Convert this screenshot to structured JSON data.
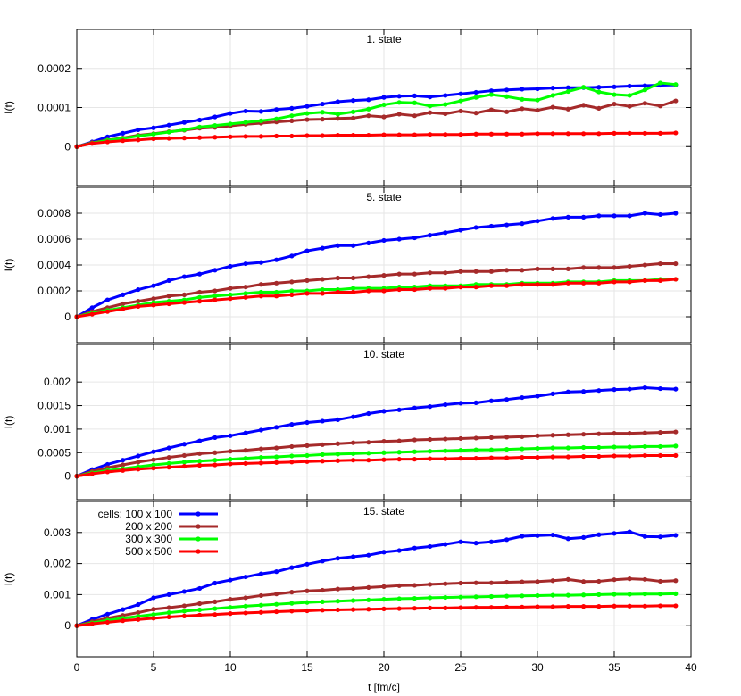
{
  "chart_data": {
    "type": "line",
    "x": [
      0,
      1,
      2,
      3,
      4,
      5,
      6,
      7,
      8,
      9,
      10,
      11,
      12,
      13,
      14,
      15,
      16,
      17,
      18,
      19,
      20,
      21,
      22,
      23,
      24,
      25,
      26,
      27,
      28,
      29,
      30,
      31,
      32,
      33,
      34,
      35,
      36,
      37,
      38,
      39
    ],
    "x_ticks": [
      0,
      5,
      10,
      15,
      20,
      25,
      30,
      35,
      40
    ],
    "xlim": [
      0,
      40
    ],
    "xlabel": "t [fm/c]",
    "grid": true,
    "legend": {
      "title": "cells:",
      "placement": "top-left of last panel",
      "entries": [
        {
          "label": "100 x 100",
          "color": "#0000ff"
        },
        {
          "label": "200 x 200",
          "color": "#a52a2a"
        },
        {
          "label": "300 x 300",
          "color": "#00ff00"
        },
        {
          "label": "500 x 500",
          "color": "#ff0000"
        }
      ]
    },
    "panels": [
      {
        "title": "1. state",
        "ylabel": "I(t)",
        "ylim": [
          -0.0001,
          0.0003
        ],
        "y_ticks": [
          0,
          0.0001,
          0.0002
        ],
        "y_tick_labels": [
          "0",
          "0.0001",
          "0.0002"
        ],
        "series": [
          {
            "name": "100 x 100",
            "color": "#0000ff",
            "values": [
              0,
              1.2e-05,
              2.5e-05,
              3.4e-05,
              4.3e-05,
              4.8e-05,
              5.5e-05,
              6.2e-05,
              6.8e-05,
              7.6e-05,
              8.5e-05,
              9.1e-05,
              9e-05,
              9.5e-05,
              9.8e-05,
              0.000103,
              0.000109,
              0.000115,
              0.000118,
              0.00012,
              0.000126,
              0.000129,
              0.00013,
              0.000127,
              0.000131,
              0.000135,
              0.000139,
              0.000143,
              0.000145,
              0.000147,
              0.000148,
              0.00015,
              0.000151,
              0.000151,
              0.000152,
              0.000153,
              0.000155,
              0.000156,
              0.000157,
              0.000158
            ]
          },
          {
            "name": "200 x 200",
            "color": "#a52a2a",
            "values": [
              0,
              1e-05,
              1.7e-05,
              2.2e-05,
              2.9e-05,
              3.3e-05,
              3.8e-05,
              4.2e-05,
              4.7e-05,
              4.9e-05,
              5.3e-05,
              5.7e-05,
              6e-05,
              6.3e-05,
              6.6e-05,
              6.9e-05,
              7e-05,
              7.2e-05,
              7.3e-05,
              7.9e-05,
              7.6e-05,
              8.3e-05,
              7.9e-05,
              8.7e-05,
              8.4e-05,
              9.1e-05,
              8.6e-05,
              9.4e-05,
              8.9e-05,
              9.7e-05,
              9.3e-05,
              0.000101,
              9.6e-05,
              0.000106,
              9.8e-05,
              0.000109,
              0.000103,
              0.000111,
              0.000104,
              0.000117
            ]
          },
          {
            "name": "300 x 300",
            "color": "#00ff00",
            "values": [
              0,
              9e-06,
              1.6e-05,
              2.1e-05,
              2.7e-05,
              3.2e-05,
              3.7e-05,
              4.3e-05,
              5e-05,
              5.4e-05,
              5.8e-05,
              6.2e-05,
              6.6e-05,
              7.1e-05,
              7.9e-05,
              8.5e-05,
              8.8e-05,
              8.3e-05,
              8.9e-05,
              9.6e-05,
              0.000107,
              0.000113,
              0.000112,
              0.000104,
              0.000108,
              0.000117,
              0.000126,
              0.000133,
              0.000128,
              0.000121,
              0.000119,
              0.000131,
              0.000141,
              0.000152,
              0.00014,
              0.000133,
              0.000131,
              0.000145,
              0.000163,
              0.000159
            ]
          },
          {
            "name": "500 x 500",
            "color": "#ff0000",
            "values": [
              0,
              8e-06,
              1.2e-05,
              1.5e-05,
              1.7e-05,
              2e-05,
              2.1e-05,
              2.2e-05,
              2.3e-05,
              2.4e-05,
              2.5e-05,
              2.6e-05,
              2.6e-05,
              2.7e-05,
              2.7e-05,
              2.8e-05,
              2.8e-05,
              2.9e-05,
              2.9e-05,
              2.9e-05,
              3e-05,
              3e-05,
              3e-05,
              3.1e-05,
              3.1e-05,
              3.1e-05,
              3.2e-05,
              3.2e-05,
              3.2e-05,
              3.2e-05,
              3.3e-05,
              3.3e-05,
              3.3e-05,
              3.3e-05,
              3.3e-05,
              3.4e-05,
              3.4e-05,
              3.4e-05,
              3.4e-05,
              3.5e-05
            ]
          }
        ]
      },
      {
        "title": "5. state",
        "ylabel": "I(t)",
        "ylim": [
          -0.0002,
          0.001
        ],
        "y_ticks": [
          0,
          0.0002,
          0.0004,
          0.0006,
          0.0008
        ],
        "y_tick_labels": [
          "0",
          "0.0002",
          "0.0004",
          "0.0006",
          "0.0008"
        ],
        "series": [
          {
            "name": "100 x 100",
            "color": "#0000ff",
            "values": [
              0,
              7e-05,
              0.00013,
              0.00017,
              0.00021,
              0.00024,
              0.00028,
              0.00031,
              0.00033,
              0.00036,
              0.00039,
              0.00041,
              0.00042,
              0.00044,
              0.00047,
              0.00051,
              0.00053,
              0.00055,
              0.00055,
              0.00057,
              0.00059,
              0.0006,
              0.00061,
              0.00063,
              0.00065,
              0.00067,
              0.00069,
              0.0007,
              0.00071,
              0.00072,
              0.00074,
              0.00076,
              0.00077,
              0.00077,
              0.00078,
              0.00078,
              0.00078,
              0.0008,
              0.00079,
              0.0008
            ]
          },
          {
            "name": "200 x 200",
            "color": "#a52a2a",
            "values": [
              0,
              4e-05,
              7e-05,
              0.0001,
              0.00012,
              0.00014,
              0.00016,
              0.00017,
              0.00019,
              0.0002,
              0.00022,
              0.00023,
              0.00025,
              0.00026,
              0.00027,
              0.00028,
              0.00029,
              0.0003,
              0.0003,
              0.00031,
              0.00032,
              0.00033,
              0.00033,
              0.00034,
              0.00034,
              0.00035,
              0.00035,
              0.00035,
              0.00036,
              0.00036,
              0.00037,
              0.00037,
              0.00037,
              0.00038,
              0.00038,
              0.00038,
              0.00039,
              0.0004,
              0.00041,
              0.00041
            ]
          },
          {
            "name": "300 x 300",
            "color": "#00ff00",
            "values": [
              0,
              3e-05,
              5e-05,
              7e-05,
              9e-05,
              0.00011,
              0.00012,
              0.00013,
              0.00015,
              0.00016,
              0.00017,
              0.00018,
              0.00019,
              0.00019,
              0.0002,
              0.0002,
              0.00021,
              0.00021,
              0.00022,
              0.00022,
              0.00022,
              0.00023,
              0.00023,
              0.00024,
              0.00024,
              0.00024,
              0.00025,
              0.00025,
              0.00025,
              0.00026,
              0.00026,
              0.00026,
              0.00027,
              0.00027,
              0.00027,
              0.00028,
              0.00028,
              0.00028,
              0.00029,
              0.00029
            ]
          },
          {
            "name": "500 x 500",
            "color": "#ff0000",
            "values": [
              0,
              2e-05,
              4e-05,
              6e-05,
              8e-05,
              9e-05,
              0.0001,
              0.00011,
              0.00012,
              0.00013,
              0.00014,
              0.00015,
              0.00016,
              0.00016,
              0.00017,
              0.00018,
              0.00018,
              0.00019,
              0.00019,
              0.0002,
              0.0002,
              0.00021,
              0.00021,
              0.00022,
              0.00022,
              0.00023,
              0.00023,
              0.00024,
              0.00024,
              0.00025,
              0.00025,
              0.00025,
              0.00026,
              0.00026,
              0.00026,
              0.00027,
              0.00027,
              0.00028,
              0.00028,
              0.00029
            ]
          }
        ]
      },
      {
        "title": "10. state",
        "ylabel": "I(t)",
        "ylim": [
          -0.0005,
          0.0028
        ],
        "y_ticks": [
          0,
          0.0005,
          0.001,
          0.0015,
          0.002
        ],
        "y_tick_labels": [
          "0",
          "0.0005",
          "0.001",
          "0.0015",
          "0.002"
        ],
        "series": [
          {
            "name": "100 x 100",
            "color": "#0000ff",
            "values": [
              0,
              0.00014,
              0.00025,
              0.00034,
              0.00043,
              0.00052,
              0.0006,
              0.00068,
              0.00075,
              0.00082,
              0.00086,
              0.00092,
              0.00098,
              0.00104,
              0.0011,
              0.00114,
              0.00117,
              0.0012,
              0.00126,
              0.00133,
              0.00138,
              0.00141,
              0.00145,
              0.00148,
              0.00152,
              0.00155,
              0.00156,
              0.0016,
              0.00163,
              0.00167,
              0.0017,
              0.00175,
              0.00179,
              0.0018,
              0.00182,
              0.00184,
              0.00185,
              0.00188,
              0.00186,
              0.00185
            ]
          },
          {
            "name": "200 x 200",
            "color": "#a52a2a",
            "values": [
              0,
              0.0001,
              0.00018,
              0.00024,
              0.0003,
              0.00035,
              0.0004,
              0.00044,
              0.00048,
              0.0005,
              0.00053,
              0.00055,
              0.00058,
              0.0006,
              0.00063,
              0.00065,
              0.00067,
              0.00069,
              0.00071,
              0.00072,
              0.00074,
              0.00075,
              0.00077,
              0.00078,
              0.00079,
              0.0008,
              0.00081,
              0.00082,
              0.00083,
              0.00084,
              0.00086,
              0.00087,
              0.00088,
              0.00089,
              0.0009,
              0.00091,
              0.00091,
              0.00092,
              0.00093,
              0.00094
            ]
          },
          {
            "name": "300 x 300",
            "color": "#00ff00",
            "values": [
              0,
              7e-05,
              0.00012,
              0.00016,
              0.0002,
              0.00024,
              0.00027,
              0.0003,
              0.00032,
              0.00034,
              0.00036,
              0.00038,
              0.0004,
              0.00041,
              0.00043,
              0.00044,
              0.00046,
              0.00047,
              0.00048,
              0.00049,
              0.0005,
              0.00051,
              0.00052,
              0.00053,
              0.00054,
              0.00055,
              0.00056,
              0.00056,
              0.00057,
              0.00058,
              0.00059,
              0.0006,
              0.0006,
              0.00061,
              0.00061,
              0.00062,
              0.00062,
              0.00063,
              0.00063,
              0.00064
            ]
          },
          {
            "name": "500 x 500",
            "color": "#ff0000",
            "values": [
              0,
              5e-05,
              9e-05,
              0.00012,
              0.00015,
              0.00017,
              0.00019,
              0.00021,
              0.00023,
              0.00024,
              0.00026,
              0.00027,
              0.00028,
              0.00029,
              0.0003,
              0.00031,
              0.00032,
              0.00033,
              0.00034,
              0.00034,
              0.00035,
              0.00036,
              0.00036,
              0.00037,
              0.00037,
              0.00038,
              0.00038,
              0.00039,
              0.00039,
              0.0004,
              0.0004,
              0.00041,
              0.00041,
              0.00042,
              0.00042,
              0.00043,
              0.00043,
              0.00044,
              0.00044,
              0.00044
            ]
          }
        ]
      },
      {
        "title": "15. state",
        "ylabel": "I(t)",
        "ylim": [
          -0.001,
          0.004
        ],
        "y_ticks": [
          0,
          0.001,
          0.002,
          0.003
        ],
        "y_tick_labels": [
          "0",
          "0.001",
          "0.002",
          "0.003"
        ],
        "series": [
          {
            "name": "100 x 100",
            "color": "#0000ff",
            "values": [
              0,
              0.0002,
              0.00037,
              0.00052,
              0.00068,
              0.0009,
              0.001,
              0.0011,
              0.0012,
              0.00137,
              0.00147,
              0.00157,
              0.00167,
              0.00174,
              0.00187,
              0.00198,
              0.00208,
              0.00217,
              0.00222,
              0.00227,
              0.00237,
              0.00242,
              0.0025,
              0.00255,
              0.00262,
              0.0027,
              0.00266,
              0.0027,
              0.00277,
              0.00288,
              0.0029,
              0.00292,
              0.0028,
              0.00284,
              0.00293,
              0.00297,
              0.00302,
              0.00287,
              0.00286,
              0.00291
            ]
          },
          {
            "name": "200 x 200",
            "color": "#a52a2a",
            "values": [
              0,
              0.00013,
              0.00024,
              0.00033,
              0.00042,
              0.00053,
              0.00058,
              0.00064,
              0.00071,
              0.00077,
              0.00085,
              0.0009,
              0.00097,
              0.00102,
              0.00108,
              0.00112,
              0.00114,
              0.00118,
              0.0012,
              0.00123,
              0.00126,
              0.00129,
              0.0013,
              0.00133,
              0.00135,
              0.00137,
              0.00138,
              0.00138,
              0.0014,
              0.00141,
              0.00142,
              0.00145,
              0.00149,
              0.00142,
              0.00143,
              0.00148,
              0.00151,
              0.00149,
              0.00143,
              0.00145
            ]
          },
          {
            "name": "300 x 300",
            "color": "#00ff00",
            "values": [
              0,
              9e-05,
              0.00017,
              0.00024,
              0.0003,
              0.00036,
              0.00042,
              0.00047,
              0.00051,
              0.00055,
              0.00059,
              0.00063,
              0.00066,
              0.00069,
              0.00072,
              0.00075,
              0.00077,
              0.00079,
              0.00081,
              0.00083,
              0.00085,
              0.00087,
              0.00088,
              0.0009,
              0.00091,
              0.00092,
              0.00093,
              0.00094,
              0.00095,
              0.00096,
              0.00097,
              0.00098,
              0.00098,
              0.00099,
              0.001,
              0.00101,
              0.00101,
              0.00102,
              0.00102,
              0.00103
            ]
          },
          {
            "name": "500 x 500",
            "color": "#ff0000",
            "values": [
              0,
              6e-05,
              0.00011,
              0.00016,
              0.0002,
              0.00024,
              0.00028,
              0.00031,
              0.00034,
              0.00036,
              0.00039,
              0.00041,
              0.00043,
              0.00045,
              0.00047,
              0.00048,
              0.0005,
              0.00051,
              0.00052,
              0.00053,
              0.00054,
              0.00055,
              0.00056,
              0.00057,
              0.00057,
              0.00058,
              0.00059,
              0.00059,
              0.0006,
              0.0006,
              0.00061,
              0.00061,
              0.00062,
              0.00062,
              0.00062,
              0.00063,
              0.00063,
              0.00063,
              0.00064,
              0.00064
            ]
          }
        ]
      }
    ]
  }
}
